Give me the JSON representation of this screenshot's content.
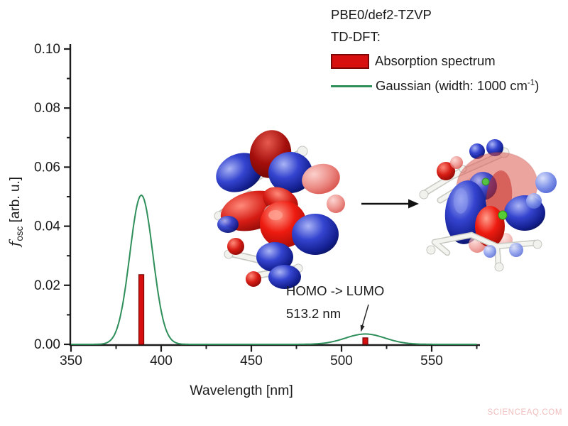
{
  "watermark": {
    "text": "SCIENCEAQ.COM",
    "color": "#f0bcbc"
  },
  "legend": {
    "title_line1": "PBE0/def2-TZVP",
    "title_line2": "TD-DFT:",
    "absorption_label": "Absorption spectrum",
    "gaussian_label_prefix": "Gaussian (width: 1000 cm",
    "gaussian_label_sup": "-1",
    "gaussian_label_suffix": ")"
  },
  "chart_data": {
    "type": "bar+line",
    "title": "",
    "xlabel": "Wavelength [nm]",
    "ylabel": "f_osc [arb. u.]",
    "ylabel_parts": {
      "italic": "f",
      "sub": "osc",
      "rest": " [arb. u.]"
    },
    "xlim": [
      350,
      575
    ],
    "ylim": [
      0,
      0.1
    ],
    "x_major_ticks": [
      350,
      400,
      450,
      500,
      550
    ],
    "x_minor_ticks": [
      375,
      425,
      475,
      525,
      575
    ],
    "y_major_ticks": [
      0.0,
      0.02,
      0.04,
      0.06,
      0.08,
      0.1
    ],
    "y_minor_ticks": [
      0.01,
      0.03,
      0.05,
      0.07,
      0.09
    ],
    "y_tick_decimals": 2,
    "grid": false,
    "legend_position": "top-right",
    "series": [
      {
        "name": "Absorption spectrum",
        "type": "bar",
        "color": "#d80f0f",
        "edge_color": "#7c0606",
        "points": [
          {
            "x": 389.0,
            "y": 0.0236
          },
          {
            "x": 513.2,
            "y": 0.0022
          }
        ]
      },
      {
        "name": "Gaussian (width: 1000 cm-1)",
        "type": "line",
        "color": "#2f8f5b",
        "gaussians": [
          {
            "center": 389.0,
            "amplitude": 0.0505,
            "fwhm_nm": 15
          },
          {
            "center": 513.2,
            "amplitude": 0.0035,
            "fwhm_nm": 26
          }
        ]
      }
    ],
    "annotation": {
      "line1": "HOMO -> LUMO",
      "line2": "513.2 nm",
      "points_to_nm": 513.2
    },
    "colors": {
      "axis": "#1c1c1c",
      "background": "#ffffff"
    }
  }
}
